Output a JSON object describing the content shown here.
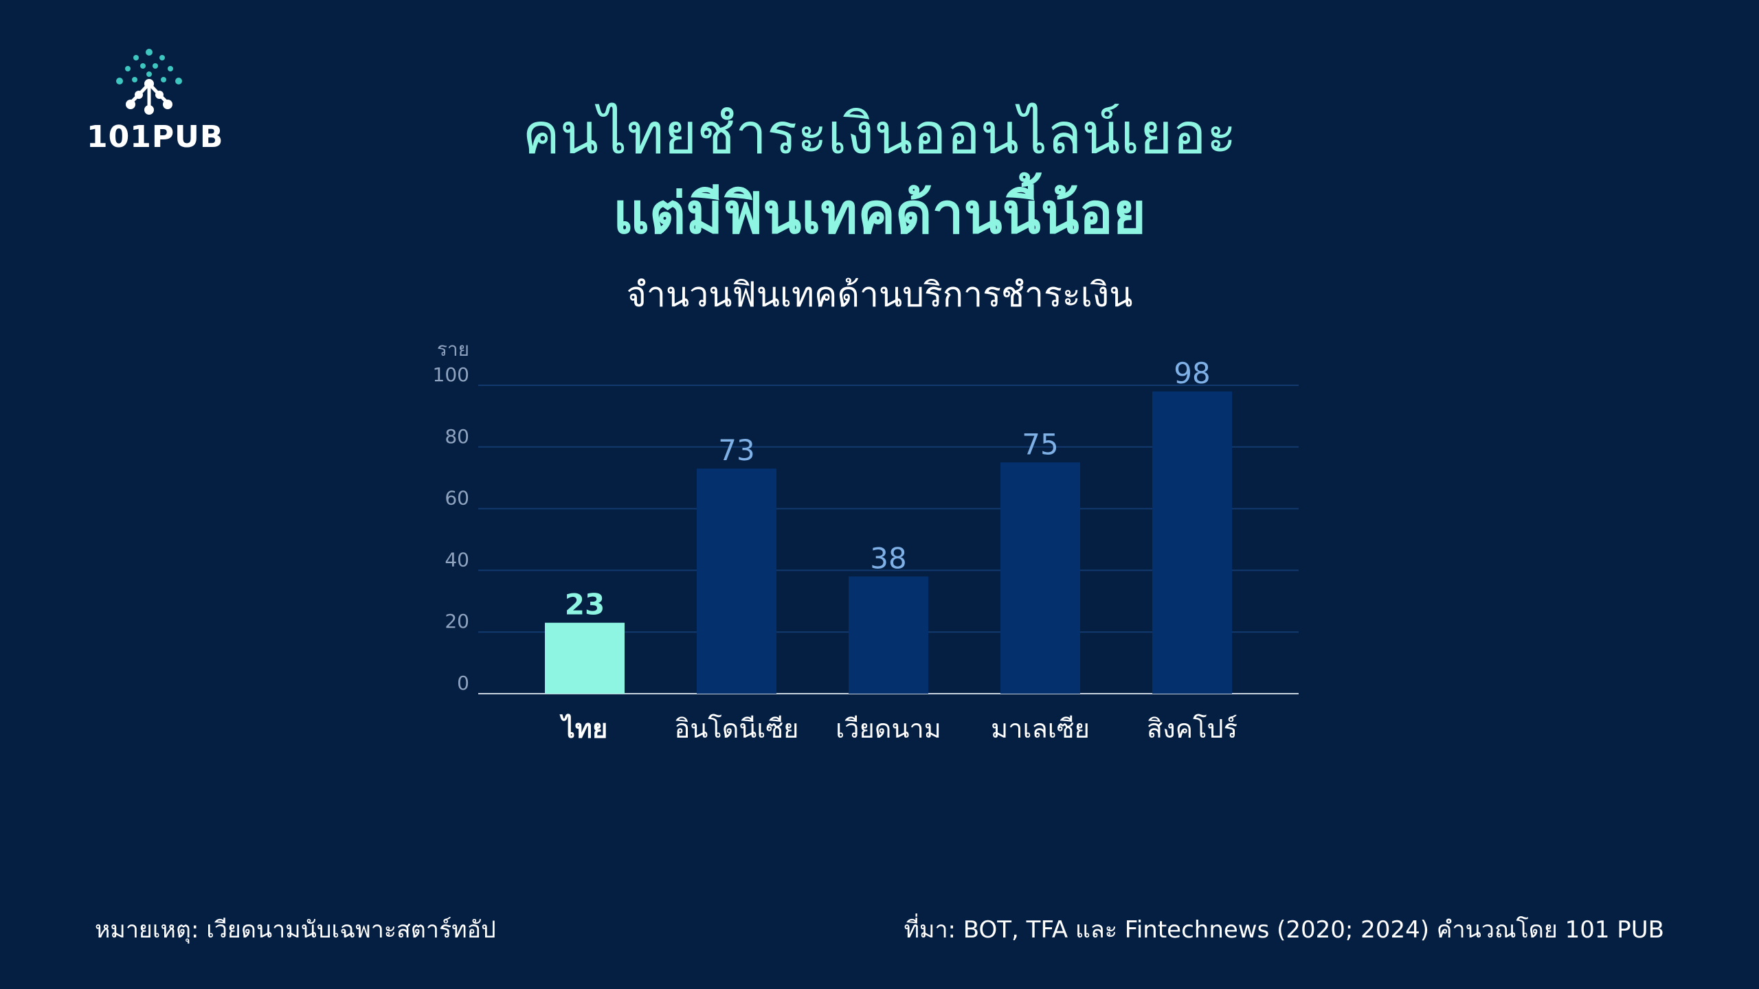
{
  "brand": {
    "logo_text": "101PUB",
    "accent_color": "#8ff5e3",
    "background_color": "#051f43"
  },
  "headline": {
    "line1": "คนไทยชำระเงินออนไลน์เยอะ",
    "line2": "แต่มีฟินเทคด้านนี้น้อย"
  },
  "chart_data": {
    "type": "bar",
    "title": "จำนวนฟินเทคด้านบริการชำระเงิน",
    "ylabel": "ราย",
    "xlabel": "",
    "ylim": [
      0,
      100
    ],
    "yticks": [
      0,
      20,
      40,
      60,
      80,
      100
    ],
    "grid": true,
    "categories": [
      "ไทย",
      "อินโดนีเซีย",
      "เวียดนาม",
      "มาเลเซีย",
      "สิงคโปร์"
    ],
    "values": [
      23,
      73,
      38,
      75,
      98
    ],
    "highlight_index": 0,
    "colors": {
      "highlight": "#8ff5e3",
      "default": "#04316e",
      "label_default": "#7fb0e6",
      "axis_text": "#8fa3bf",
      "grid": "#123a6e"
    }
  },
  "footnotes": {
    "note": "หมายเหตุ: เวียดนามนับเฉพาะสตาร์ทอัป",
    "source": "ที่มา: BOT, TFA และ Fintechnews (2020; 2024) คำนวณโดย 101 PUB"
  }
}
